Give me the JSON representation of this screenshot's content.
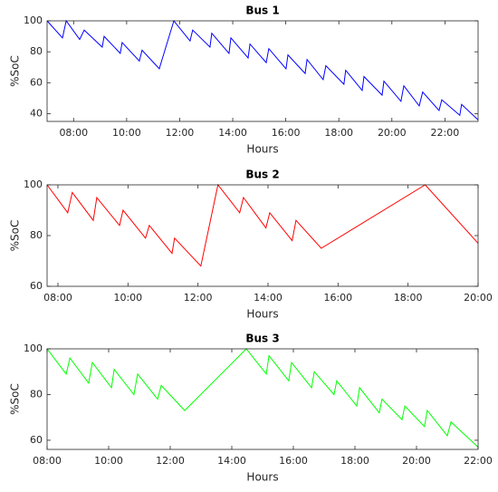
{
  "chart_data": [
    {
      "type": "line",
      "title": "Bus 1",
      "xlabel": "Hours",
      "ylabel": "%SoC",
      "color": "#0000ff",
      "x": [
        7,
        7.58,
        7.72,
        8.23,
        8.4,
        9.08,
        9.15,
        9.76,
        9.83,
        10.48,
        10.58,
        11.23,
        11.78,
        12.39,
        12.49,
        13.14,
        13.21,
        13.86,
        13.93,
        14.58,
        14.65,
        15.26,
        15.36,
        16.01,
        16.08,
        16.73,
        16.8,
        17.41,
        17.51,
        18.19,
        18.26,
        18.88,
        18.95,
        19.63,
        19.7,
        20.34,
        20.45,
        21.03,
        21.16,
        21.78,
        21.88,
        22.56,
        22.63,
        23.25
      ],
      "values": [
        100,
        89,
        100,
        88,
        94,
        83,
        90,
        79,
        86,
        74,
        81,
        69,
        100,
        87,
        94,
        83,
        92,
        79,
        89,
        76,
        85,
        73,
        82,
        69,
        78,
        66,
        75,
        62,
        71,
        59,
        68,
        55,
        64,
        52,
        61,
        48,
        58,
        45,
        54,
        42,
        49,
        39,
        46,
        36
      ],
      "xlim": [
        7,
        23.25
      ],
      "ylim": [
        35,
        100
      ],
      "xticks": [
        {
          "value": 8,
          "label": "08:00"
        },
        {
          "value": 10,
          "label": "10:00"
        },
        {
          "value": 12,
          "label": "12:00"
        },
        {
          "value": 14,
          "label": "14:00"
        },
        {
          "value": 16,
          "label": "16:00"
        },
        {
          "value": 18,
          "label": "18:00"
        },
        {
          "value": 20,
          "label": "20:00"
        },
        {
          "value": 22,
          "label": "22:00"
        }
      ],
      "yticks": [
        40,
        60,
        80,
        100
      ]
    },
    {
      "type": "line",
      "title": "Bus 2",
      "xlabel": "Hours",
      "ylabel": "%SoC",
      "color": "#ff0000",
      "x": [
        7.69,
        8.28,
        8.41,
        9.01,
        9.11,
        9.76,
        9.86,
        10.5,
        10.61,
        11.26,
        11.33,
        12.08,
        12.57,
        13.19,
        13.3,
        13.94,
        14.05,
        14.69,
        14.8,
        15.52,
        18.49,
        20
      ],
      "values": [
        100,
        89,
        97,
        86,
        95,
        84,
        90,
        79,
        84,
        73,
        79,
        68,
        100,
        89,
        95,
        83,
        89,
        78,
        86,
        75,
        100,
        77
      ],
      "xlim": [
        7.69,
        20
      ],
      "ylim": [
        60,
        100
      ],
      "xticks": [
        {
          "value": 8,
          "label": "08:00"
        },
        {
          "value": 10,
          "label": "10:00"
        },
        {
          "value": 12,
          "label": "12:00"
        },
        {
          "value": 14,
          "label": "14:00"
        },
        {
          "value": 16,
          "label": "16:00"
        },
        {
          "value": 18,
          "label": "18:00"
        },
        {
          "value": 20,
          "label": "20:00"
        }
      ],
      "yticks": [
        60,
        80,
        100
      ]
    },
    {
      "type": "line",
      "title": "Bus 3",
      "xlabel": "Hours",
      "ylabel": "%SoC",
      "color": "#00ff00",
      "x": [
        8,
        8.62,
        8.74,
        9.35,
        9.47,
        10.09,
        10.18,
        10.82,
        10.94,
        11.59,
        11.71,
        12.47,
        14.47,
        15.12,
        15.21,
        15.85,
        15.94,
        16.59,
        16.68,
        17.32,
        17.41,
        18.06,
        18.15,
        18.79,
        18.88,
        19.53,
        19.62,
        20.26,
        20.35,
        21,
        21.12,
        22
      ],
      "values": [
        100,
        89,
        96,
        85,
        94,
        83,
        91,
        80,
        89,
        78,
        84,
        73,
        100,
        89,
        97,
        86,
        94,
        83,
        90,
        80,
        86,
        75,
        83,
        72,
        78,
        69,
        75,
        66,
        73,
        62,
        68,
        57
      ],
      "xlim": [
        8,
        22
      ],
      "ylim": [
        56,
        100
      ],
      "xticks": [
        {
          "value": 8,
          "label": "08:00"
        },
        {
          "value": 10,
          "label": "10:00"
        },
        {
          "value": 12,
          "label": "12:00"
        },
        {
          "value": 14,
          "label": "14:00"
        },
        {
          "value": 16,
          "label": "16:00"
        },
        {
          "value": 18,
          "label": "18:00"
        },
        {
          "value": 20,
          "label": "20:00"
        },
        {
          "value": 22,
          "label": "22:00"
        }
      ],
      "yticks": [
        60,
        80,
        100
      ]
    }
  ]
}
